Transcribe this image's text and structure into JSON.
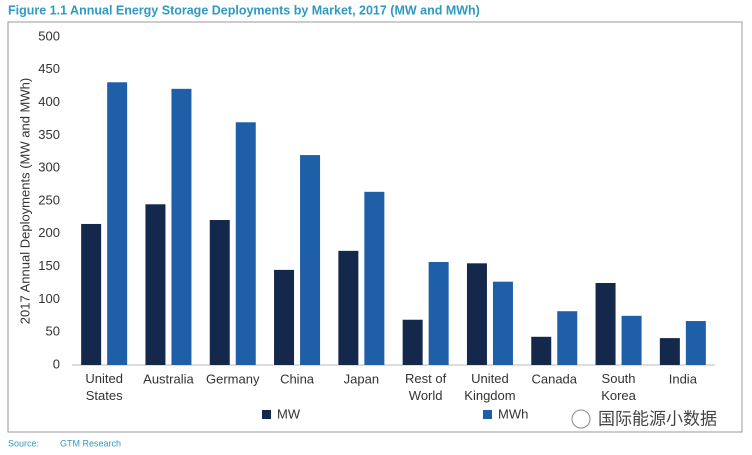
{
  "chart_data": {
    "type": "bar",
    "title": "Figure 1.1 Annual Energy Storage Deployments by Market, 2017  (MW and MWh)",
    "y_label": "2017 Annual Deployments (MW and MWh)",
    "categories": [
      "United\nStates",
      "Australia",
      "Germany",
      "China",
      "Japan",
      "Rest of\nWorld",
      "United\nKingdom",
      "Canada",
      "South\nKorea",
      "India"
    ],
    "series": [
      {
        "name": "MW",
        "color": "#14284b",
        "values": [
          215,
          245,
          221,
          145,
          174,
          69,
          155,
          43,
          125,
          41
        ]
      },
      {
        "name": "MWh",
        "color": "#1f5fa8",
        "values": [
          431,
          421,
          370,
          320,
          264,
          157,
          127,
          82,
          75,
          67
        ]
      }
    ],
    "ylim": [
      0,
      500
    ],
    "yticks": [
      0,
      50,
      100,
      150,
      200,
      250,
      300,
      350,
      400,
      450,
      500
    ],
    "grid": false,
    "source_label": "Source:",
    "source": "GTM Research",
    "watermark": "国际能源小数据"
  }
}
